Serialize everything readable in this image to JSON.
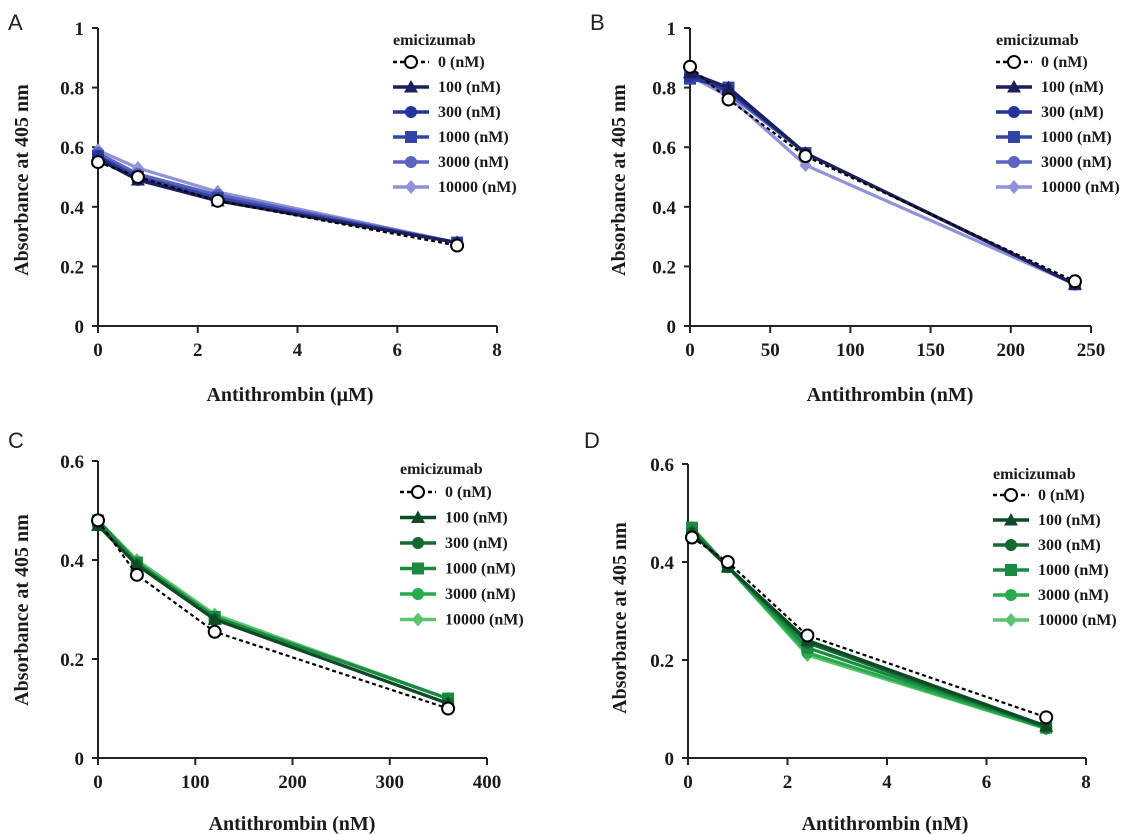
{
  "colors": {
    "control": "#000000",
    "blue_series": [
      "#1b1f5e",
      "#23349a",
      "#3344a8",
      "#5a63c0",
      "#8f92d8"
    ],
    "green_series": [
      "#0d4a26",
      "#13692f",
      "#1a8a40",
      "#27aa4d",
      "#5cc46f"
    ]
  },
  "chart_data": [
    {
      "panel": "A",
      "type": "line",
      "xlabel": "Antithrombin (μM)",
      "ylabel": "Absorbance at 405 nm",
      "xlim": [
        0,
        8
      ],
      "ylim": [
        0,
        1
      ],
      "xticks": [
        "0",
        "2",
        "4",
        "6",
        "8"
      ],
      "yticks": [
        "0",
        "0.2",
        "0.4",
        "0.6",
        "0.8",
        "1"
      ],
      "legend_title": "emicizumab",
      "legend_position": "top-right",
      "palette": "blue",
      "x": [
        0,
        0.8,
        2.4,
        7.2
      ],
      "series": [
        {
          "name": "0 (nM)",
          "marker": "open-circle",
          "dashed": true,
          "values": [
            0.55,
            0.5,
            0.42,
            0.27
          ]
        },
        {
          "name": "100 (nM)",
          "marker": "triangle",
          "values": [
            0.56,
            0.49,
            0.42,
            0.28
          ]
        },
        {
          "name": "300 (nM)",
          "marker": "circle",
          "values": [
            0.57,
            0.49,
            0.42,
            0.28
          ]
        },
        {
          "name": "1000 (nM)",
          "marker": "square",
          "values": [
            0.57,
            0.5,
            0.43,
            0.28
          ]
        },
        {
          "name": "3000 (nM)",
          "marker": "circle",
          "values": [
            0.58,
            0.51,
            0.44,
            0.28
          ]
        },
        {
          "name": "10000 (nM)",
          "marker": "diamond",
          "values": [
            0.59,
            0.53,
            0.45,
            0.28
          ]
        }
      ]
    },
    {
      "panel": "B",
      "type": "line",
      "xlabel": "Antithrombin (nM)",
      "ylabel": "Absorbance at 405 nm",
      "xlim": [
        0,
        250
      ],
      "ylim": [
        0,
        1
      ],
      "xticks": [
        "0",
        "50",
        "100",
        "150",
        "200",
        "250"
      ],
      "yticks": [
        "0",
        "0.2",
        "0.4",
        "0.6",
        "0.8",
        "1"
      ],
      "legend_title": "emicizumab",
      "legend_position": "top-right",
      "palette": "blue",
      "x": [
        0,
        24,
        72,
        240
      ],
      "series": [
        {
          "name": "0 (nM)",
          "marker": "open-circle",
          "dashed": true,
          "values": [
            0.87,
            0.76,
            0.57,
            0.15
          ]
        },
        {
          "name": "100 (nM)",
          "marker": "triangle",
          "values": [
            0.85,
            0.8,
            0.58,
            0.14
          ]
        },
        {
          "name": "300 (nM)",
          "marker": "circle",
          "values": [
            0.84,
            0.79,
            0.58,
            0.14
          ]
        },
        {
          "name": "1000 (nM)",
          "marker": "square",
          "values": [
            0.83,
            0.8,
            0.58,
            0.14
          ]
        },
        {
          "name": "3000 (nM)",
          "marker": "circle",
          "values": [
            0.85,
            0.78,
            0.58,
            0.14
          ]
        },
        {
          "name": "10000 (nM)",
          "marker": "diamond",
          "values": [
            0.84,
            0.77,
            0.54,
            0.14
          ]
        }
      ]
    },
    {
      "panel": "C",
      "type": "line",
      "xlabel": "Antithrombin (nM)",
      "ylabel": "Absorbance at 405 nm",
      "xlim": [
        0,
        400
      ],
      "ylim": [
        0,
        0.6
      ],
      "xticks": [
        "0",
        "100",
        "200",
        "300",
        "400"
      ],
      "yticks": [
        "0",
        "0.2",
        "0.4",
        "0.6"
      ],
      "legend_title": "emicizumab",
      "legend_position": "top-right",
      "palette": "green",
      "x": [
        0,
        40,
        120,
        360
      ],
      "series": [
        {
          "name": "0 (nM)",
          "marker": "open-circle",
          "dashed": true,
          "values": [
            0.48,
            0.37,
            0.255,
            0.1
          ]
        },
        {
          "name": "100 (nM)",
          "marker": "triangle",
          "values": [
            0.47,
            0.39,
            0.28,
            0.11
          ]
        },
        {
          "name": "300 (nM)",
          "marker": "circle",
          "values": [
            0.47,
            0.39,
            0.28,
            0.11
          ]
        },
        {
          "name": "1000 (nM)",
          "marker": "square",
          "values": [
            0.48,
            0.395,
            0.285,
            0.12
          ]
        },
        {
          "name": "3000 (nM)",
          "marker": "circle",
          "values": [
            0.48,
            0.395,
            0.285,
            0.12
          ]
        },
        {
          "name": "10000 (nM)",
          "marker": "diamond",
          "values": [
            0.48,
            0.4,
            0.29,
            0.12
          ]
        }
      ]
    },
    {
      "panel": "D",
      "type": "line",
      "xlabel": "Antithrombin (nM)",
      "ylabel": "Absorbance at 405 nm",
      "xlim": [
        0,
        8
      ],
      "ylim": [
        0,
        0.6
      ],
      "xticks": [
        "0",
        "2",
        "4",
        "6",
        "8"
      ],
      "yticks": [
        "0",
        "0.2",
        "0.4",
        "0.6"
      ],
      "legend_title": "emicizumab",
      "legend_position": "top-right",
      "palette": "green",
      "x": [
        0.08,
        0.8,
        2.4,
        7.2
      ],
      "series": [
        {
          "name": "0 (nM)",
          "marker": "open-circle",
          "dashed": true,
          "values": [
            0.45,
            0.4,
            0.25,
            0.083
          ]
        },
        {
          "name": "100 (nM)",
          "marker": "triangle",
          "values": [
            0.46,
            0.39,
            0.24,
            0.065
          ]
        },
        {
          "name": "300 (nM)",
          "marker": "circle",
          "values": [
            0.46,
            0.39,
            0.235,
            0.063
          ]
        },
        {
          "name": "1000 (nM)",
          "marker": "square",
          "values": [
            0.47,
            0.39,
            0.225,
            0.062
          ]
        },
        {
          "name": "3000 (nM)",
          "marker": "circle",
          "values": [
            0.47,
            0.39,
            0.215,
            0.06
          ]
        },
        {
          "name": "10000 (nM)",
          "marker": "diamond",
          "values": [
            0.47,
            0.39,
            0.21,
            0.06
          ]
        }
      ]
    }
  ]
}
